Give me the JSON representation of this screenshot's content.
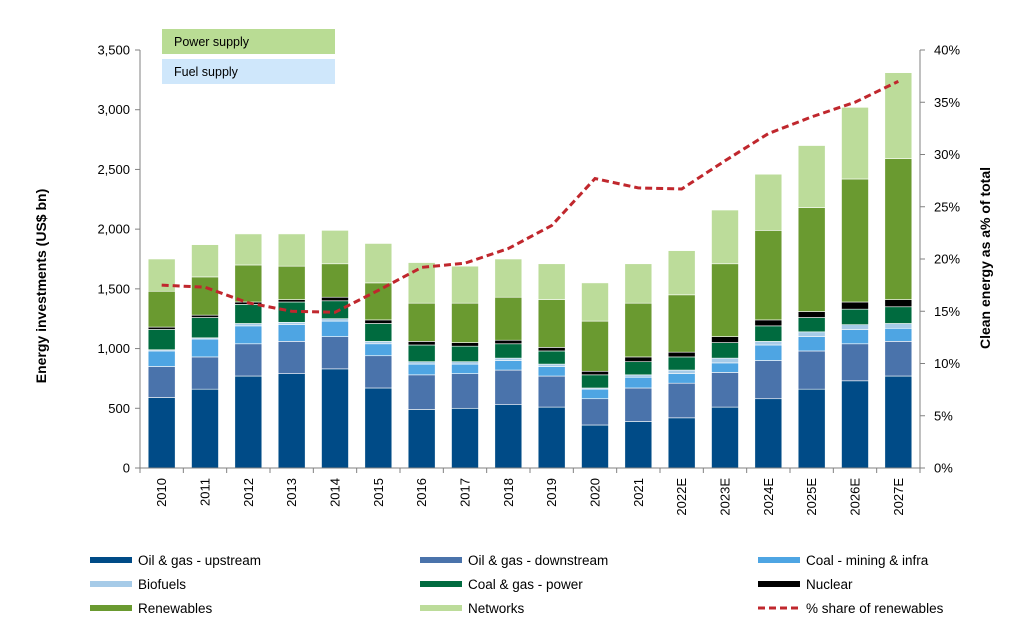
{
  "chart_data": {
    "type": "bar",
    "stacked": true,
    "categories": [
      "2010",
      "2011",
      "2012",
      "2013",
      "2014",
      "2015",
      "2016",
      "2017",
      "2018",
      "2019",
      "2020",
      "2021",
      "2022E",
      "2023E",
      "2024E",
      "2025E",
      "2026E",
      "2027E"
    ],
    "ylabel": "Energy investments (US$ bn)",
    "y2label": "Clean energy as a% of total",
    "ylim": [
      0,
      3500
    ],
    "y2lim": [
      0,
      40
    ],
    "yticks": [
      "0",
      "500",
      "1,000",
      "1,500",
      "2,000",
      "2,500",
      "3,000",
      "3,500"
    ],
    "y2ticks": [
      "0%",
      "5%",
      "10%",
      "15%",
      "20%",
      "25%",
      "30%",
      "35%",
      "40%"
    ],
    "box_labels": [
      "Power supply",
      "Fuel supply"
    ],
    "box_colors": [
      "#b9dc94",
      "#cfe7fb"
    ],
    "series": [
      {
        "name": "Oil & gas - upstream",
        "color": "#004b87",
        "values": [
          590,
          660,
          770,
          790,
          830,
          670,
          490,
          500,
          530,
          510,
          360,
          390,
          420,
          510,
          580,
          660,
          730,
          770
        ]
      },
      {
        "name": "Oil & gas - downstream",
        "color": "#4a73ab",
        "values": [
          260,
          270,
          270,
          270,
          270,
          270,
          290,
          290,
          290,
          260,
          220,
          280,
          290,
          290,
          320,
          320,
          310,
          290
        ]
      },
      {
        "name": "Coal - mining & infra",
        "color": "#4ea5e3",
        "values": [
          130,
          150,
          150,
          140,
          130,
          100,
          90,
          80,
          80,
          80,
          80,
          90,
          80,
          80,
          130,
          120,
          120,
          110
        ]
      },
      {
        "name": "Biofuels",
        "color": "#a6cbe8",
        "values": [
          10,
          10,
          20,
          20,
          20,
          20,
          20,
          20,
          20,
          20,
          10,
          20,
          30,
          40,
          30,
          40,
          40,
          40
        ]
      },
      {
        "name": "Coal & gas - power",
        "color": "#006b3f",
        "values": [
          170,
          170,
          160,
          170,
          150,
          150,
          140,
          130,
          120,
          110,
          110,
          110,
          110,
          130,
          130,
          120,
          130,
          140
        ]
      },
      {
        "name": "Nuclear",
        "color": "#000000",
        "values": [
          20,
          20,
          20,
          20,
          30,
          30,
          30,
          30,
          30,
          30,
          30,
          40,
          40,
          50,
          50,
          50,
          60,
          60
        ]
      },
      {
        "name": "Renewables",
        "color": "#6a9a30",
        "values": [
          300,
          320,
          310,
          280,
          280,
          310,
          320,
          330,
          360,
          400,
          420,
          450,
          480,
          610,
          750,
          870,
          1030,
          1180
        ]
      },
      {
        "name": "Networks",
        "color": "#bcdc9a",
        "values": [
          270,
          270,
          260,
          270,
          280,
          330,
          340,
          310,
          320,
          300,
          320,
          330,
          370,
          450,
          470,
          520,
          600,
          720
        ]
      }
    ],
    "line": {
      "name": "% share of renewables",
      "color": "#c0272d",
      "axis": "right",
      "values": [
        17.5,
        17.3,
        15.8,
        15.0,
        14.9,
        17.0,
        19.2,
        19.6,
        21.0,
        23.2,
        27.7,
        26.8,
        26.7,
        29.4,
        32.0,
        33.6,
        35.0,
        37.0
      ]
    },
    "legend_position": "bottom",
    "legend_order": [
      "Oil & gas - upstream",
      "Oil & gas - downstream",
      "Coal - mining & infra",
      "Biofuels",
      "Coal & gas - power",
      "Nuclear",
      "Renewables",
      "Networks",
      "% share of renewables"
    ],
    "grid": false
  }
}
